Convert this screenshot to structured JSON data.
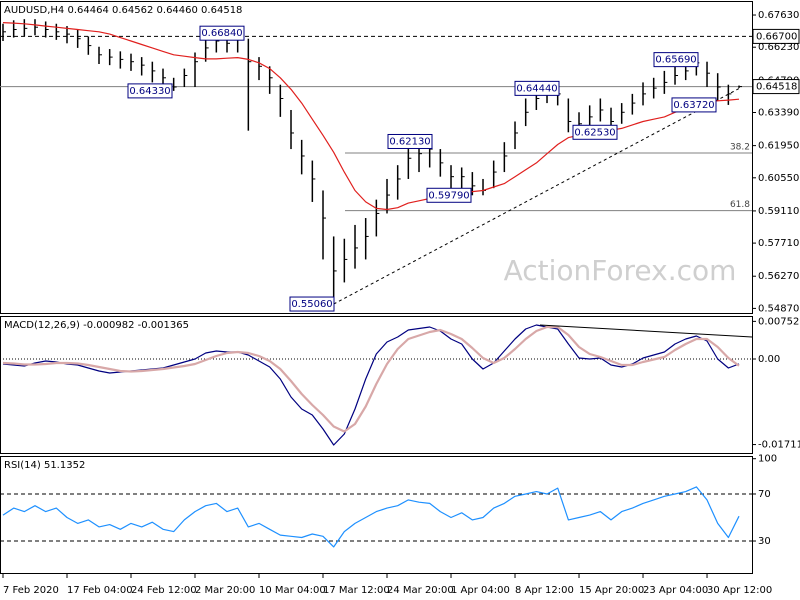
{
  "chart_data": [
    {
      "type": "ohlc",
      "title": "AUDUSD,H4 0.64464 0.64562 0.64460 0.64518",
      "color": "#000000",
      "categories": [
        "7 Feb 2020",
        null,
        null,
        null,
        null,
        null,
        "17 Feb 04:00",
        null,
        null,
        null,
        null,
        null,
        "24 Feb 12:00",
        null,
        null,
        null,
        null,
        null,
        "2 Mar 20:00",
        null,
        null,
        null,
        null,
        null,
        "10 Mar 04:00",
        null,
        null,
        null,
        null,
        null,
        "17 Mar 12:00",
        null,
        null,
        null,
        null,
        null,
        "24 Mar 20:00",
        null,
        null,
        null,
        null,
        null,
        "1 Apr 04:00",
        null,
        null,
        null,
        null,
        null,
        "8 Apr 12:00",
        null,
        null,
        null,
        null,
        null,
        "15 Apr 20:00",
        null,
        null,
        null,
        null,
        null,
        "23 Apr 04:00",
        null,
        null,
        null,
        null,
        null,
        "30 Apr 12:00",
        null,
        null,
        null
      ],
      "high": [
        0.6725,
        0.674,
        0.6745,
        0.6745,
        0.6735,
        0.6725,
        0.6715,
        0.67,
        0.667,
        0.6625,
        0.6615,
        0.6605,
        0.6595,
        0.658,
        0.656,
        0.653,
        0.649,
        0.653,
        0.66,
        0.666,
        0.6684,
        0.668,
        0.6684,
        0.666,
        0.658,
        0.654,
        0.646,
        0.635,
        0.622,
        0.613,
        0.6,
        0.58,
        0.579,
        0.585,
        0.588,
        0.596,
        0.605,
        0.611,
        0.62,
        0.6205,
        0.6213,
        0.618,
        0.611,
        0.61,
        0.608,
        0.605,
        0.613,
        0.621,
        0.63,
        0.64,
        0.6444,
        0.6444,
        0.644,
        0.64,
        0.634,
        0.637,
        0.64,
        0.636,
        0.638,
        0.642,
        0.647,
        0.649,
        0.652,
        0.654,
        0.6569,
        0.6569,
        0.656,
        0.651,
        0.646,
        0.64562
      ],
      "low": [
        0.665,
        0.6665,
        0.667,
        0.6675,
        0.6665,
        0.6655,
        0.664,
        0.662,
        0.659,
        0.655,
        0.6545,
        0.653,
        0.652,
        0.65,
        0.647,
        0.644,
        0.6433,
        0.645,
        0.645,
        0.656,
        0.66,
        0.66,
        0.66,
        0.626,
        0.648,
        0.642,
        0.632,
        0.618,
        0.607,
        0.595,
        0.57,
        0.5506,
        0.56,
        0.566,
        0.57,
        0.58,
        0.59,
        0.596,
        0.605,
        0.608,
        0.61,
        0.606,
        0.6,
        0.601,
        0.5979,
        0.5979,
        0.601,
        0.608,
        0.618,
        0.628,
        0.635,
        0.638,
        0.637,
        0.6253,
        0.6253,
        0.627,
        0.63,
        0.626,
        0.629,
        0.633,
        0.637,
        0.64,
        0.642,
        0.646,
        0.648,
        0.65,
        0.645,
        0.639,
        0.6372,
        0.6446
      ],
      "close": [
        0.669,
        0.67,
        0.6705,
        0.671,
        0.67,
        0.669,
        0.668,
        0.666,
        0.663,
        0.659,
        0.658,
        0.657,
        0.656,
        0.6545,
        0.652,
        0.649,
        0.645,
        0.65,
        0.656,
        0.662,
        0.665,
        0.664,
        0.666,
        0.656,
        0.654,
        0.649,
        0.64,
        0.625,
        0.615,
        0.605,
        0.588,
        0.565,
        0.57,
        0.575,
        0.58,
        0.59,
        0.598,
        0.605,
        0.614,
        0.616,
        0.618,
        0.612,
        0.606,
        0.606,
        0.602,
        0.6,
        0.608,
        0.615,
        0.625,
        0.634,
        0.64,
        0.642,
        0.642,
        0.63,
        0.629,
        0.632,
        0.635,
        0.63,
        0.634,
        0.638,
        0.642,
        0.6445,
        0.647,
        0.65,
        0.652,
        0.6555,
        0.651,
        0.645,
        0.642,
        0.64518
      ],
      "series": [
        {
          "color": "#e0201e",
          "values": [
            0.673,
            0.6728,
            0.6725,
            0.672,
            0.6715,
            0.671,
            0.6705,
            0.67,
            0.6695,
            0.669,
            0.668,
            0.6665,
            0.665,
            0.6635,
            0.662,
            0.6605,
            0.659,
            0.6584,
            0.6578,
            0.6572,
            0.6572,
            0.6575,
            0.6578,
            0.657,
            0.6555,
            0.653,
            0.649,
            0.644,
            0.638,
            0.631,
            0.624,
            0.6166,
            0.608,
            0.6,
            0.595,
            0.5922,
            0.5917,
            0.5925,
            0.5945,
            0.5955,
            0.5965,
            0.5975,
            0.5985,
            0.599,
            0.5995,
            0.6,
            0.6015,
            0.603,
            0.606,
            0.609,
            0.612,
            0.616,
            0.62,
            0.623,
            0.624,
            0.625,
            0.6258,
            0.6262,
            0.627,
            0.6285,
            0.63,
            0.631,
            0.632,
            0.634,
            0.6357,
            0.637,
            0.6385,
            0.639,
            0.6393,
            0.6397
          ]
        }
      ],
      "ylim": [
        0.5467,
        0.6824
      ],
      "yticks": [
        {
          "value": 0.6763,
          "label": "0.67630"
        },
        {
          "value": 0.6623,
          "label": "0.66230"
        },
        {
          "value": 0.6479,
          "label": "0.64790"
        },
        {
          "value": 0.6339,
          "label": "0.63390"
        },
        {
          "value": 0.6195,
          "label": "0.61950"
        },
        {
          "value": 0.6055,
          "label": "0.60550"
        },
        {
          "value": 0.5911,
          "label": "0.59110"
        },
        {
          "value": 0.5771,
          "label": "0.57710"
        },
        {
          "value": 0.5627,
          "label": "0.56270"
        },
        {
          "value": 0.5487,
          "label": "0.54870"
        }
      ],
      "levels": [
        {
          "value": 0.667,
          "label": "0.66700",
          "style": "dashed"
        },
        {
          "value": 0.64518,
          "label": "0.64518",
          "style": "solid"
        }
      ],
      "fib": [
        {
          "ratio": 38.2,
          "value": 0.6163
        },
        {
          "ratio": 61.8,
          "value": 0.5912
        }
      ],
      "annotations": [
        {
          "value": 0.6684,
          "label": "0.66840"
        },
        {
          "value": 0.6433,
          "label": "0.64330"
        },
        {
          "value": 0.5506,
          "label": "0.55060"
        },
        {
          "value": 0.6213,
          "label": "0.62130"
        },
        {
          "value": 0.5979,
          "label": "0.59790"
        },
        {
          "value": 0.6444,
          "label": "0.64440"
        },
        {
          "value": 0.6253,
          "label": "0.62530"
        },
        {
          "value": 0.6569,
          "label": "0.65690"
        },
        {
          "value": 0.6372,
          "label": "0.63720"
        }
      ],
      "watermark": "ActionForex.com"
    },
    {
      "type": "line",
      "title": "MACD(12,26,9) -0.000982 -0.001365",
      "series": [
        {
          "color": "#000080",
          "values": [
            -0.001,
            -0.0012,
            -0.0014,
            -0.0008,
            -0.0004,
            -0.0006,
            -0.001,
            -0.0012,
            -0.0018,
            -0.0024,
            -0.0028,
            -0.0026,
            -0.0024,
            -0.0022,
            -0.002,
            -0.0018,
            -0.0012,
            -0.0006,
            0.0,
            0.0012,
            0.0016,
            0.0014,
            0.0014,
            0.0008,
            -0.0004,
            -0.0016,
            -0.004,
            -0.0076,
            -0.01,
            -0.0112,
            -0.014,
            -0.0172,
            -0.015,
            -0.01,
            -0.004,
            0.001,
            0.0034,
            0.0044,
            0.0058,
            0.0061,
            0.0064,
            0.0056,
            0.004,
            0.003,
            0.0,
            -0.002,
            -0.0008,
            0.0016,
            0.004,
            0.006,
            0.0068,
            0.0064,
            0.006,
            0.003,
            0.0002,
            0.0,
            0.0002,
            -0.0012,
            -0.0016,
            -0.001,
            0.0002,
            0.0008,
            0.0014,
            0.003,
            0.004,
            0.0046,
            0.0036,
            0.0,
            -0.0018,
            -0.000982
          ]
        },
        {
          "color": "#d8a8a8",
          "values": [
            -0.0008,
            -0.0009,
            -0.0011,
            -0.0011,
            -0.001,
            -0.0008,
            -0.0008,
            -0.0009,
            -0.0012,
            -0.0016,
            -0.002,
            -0.0024,
            -0.0025,
            -0.0024,
            -0.0022,
            -0.002,
            -0.0017,
            -0.0014,
            -0.001,
            -0.0002,
            0.0006,
            0.0012,
            0.0014,
            0.0012,
            0.0006,
            -0.0004,
            -0.002,
            -0.0044,
            -0.007,
            -0.0092,
            -0.0112,
            -0.0135,
            -0.0145,
            -0.013,
            -0.0095,
            -0.005,
            -0.001,
            0.002,
            0.004,
            0.0047,
            0.0054,
            0.0058,
            0.005,
            0.004,
            0.0022,
            0.0002,
            -0.0008,
            0.0002,
            0.002,
            0.004,
            0.0056,
            0.0064,
            0.0064,
            0.0048,
            0.0024,
            0.001,
            0.0004,
            -0.0004,
            -0.0012,
            -0.0012,
            -0.0006,
            -0.0001,
            0.0004,
            0.0018,
            0.003,
            0.004,
            0.004,
            0.0024,
            0.0002,
            -0.001365
          ]
        }
      ],
      "ylim": [
        -0.0188,
        0.0086
      ],
      "yticks": [
        0.007526,
        {
          "value": 0,
          "label": "0.00"
        },
        -0.017112
      ],
      "levels": [
        {
          "value": 0,
          "style": "dotted"
        }
      ]
    },
    {
      "type": "line",
      "title": "RSI(14) 51.1352",
      "series": [
        {
          "color": "#1e90ff",
          "values": [
            52,
            58,
            55,
            60,
            55,
            58,
            50,
            45,
            48,
            42,
            44,
            40,
            45,
            42,
            46,
            40,
            38,
            48,
            55,
            60,
            62,
            55,
            58,
            42,
            45,
            40,
            35,
            34,
            33,
            36,
            34,
            25,
            38,
            45,
            50,
            55,
            58,
            60,
            65,
            63,
            62,
            55,
            50,
            54,
            48,
            50,
            58,
            62,
            68,
            70,
            72,
            70,
            75,
            48,
            50,
            52,
            55,
            48,
            55,
            58,
            62,
            65,
            68,
            70,
            72,
            76,
            65,
            45,
            33,
            51.1352
          ]
        }
      ],
      "ylim": [
        2.8,
        102.3
      ],
      "yticks": [
        100,
        70,
        30
      ],
      "levels": [
        {
          "value": 70,
          "style": "dashed"
        },
        {
          "value": 30,
          "style": "dashed"
        }
      ]
    }
  ]
}
